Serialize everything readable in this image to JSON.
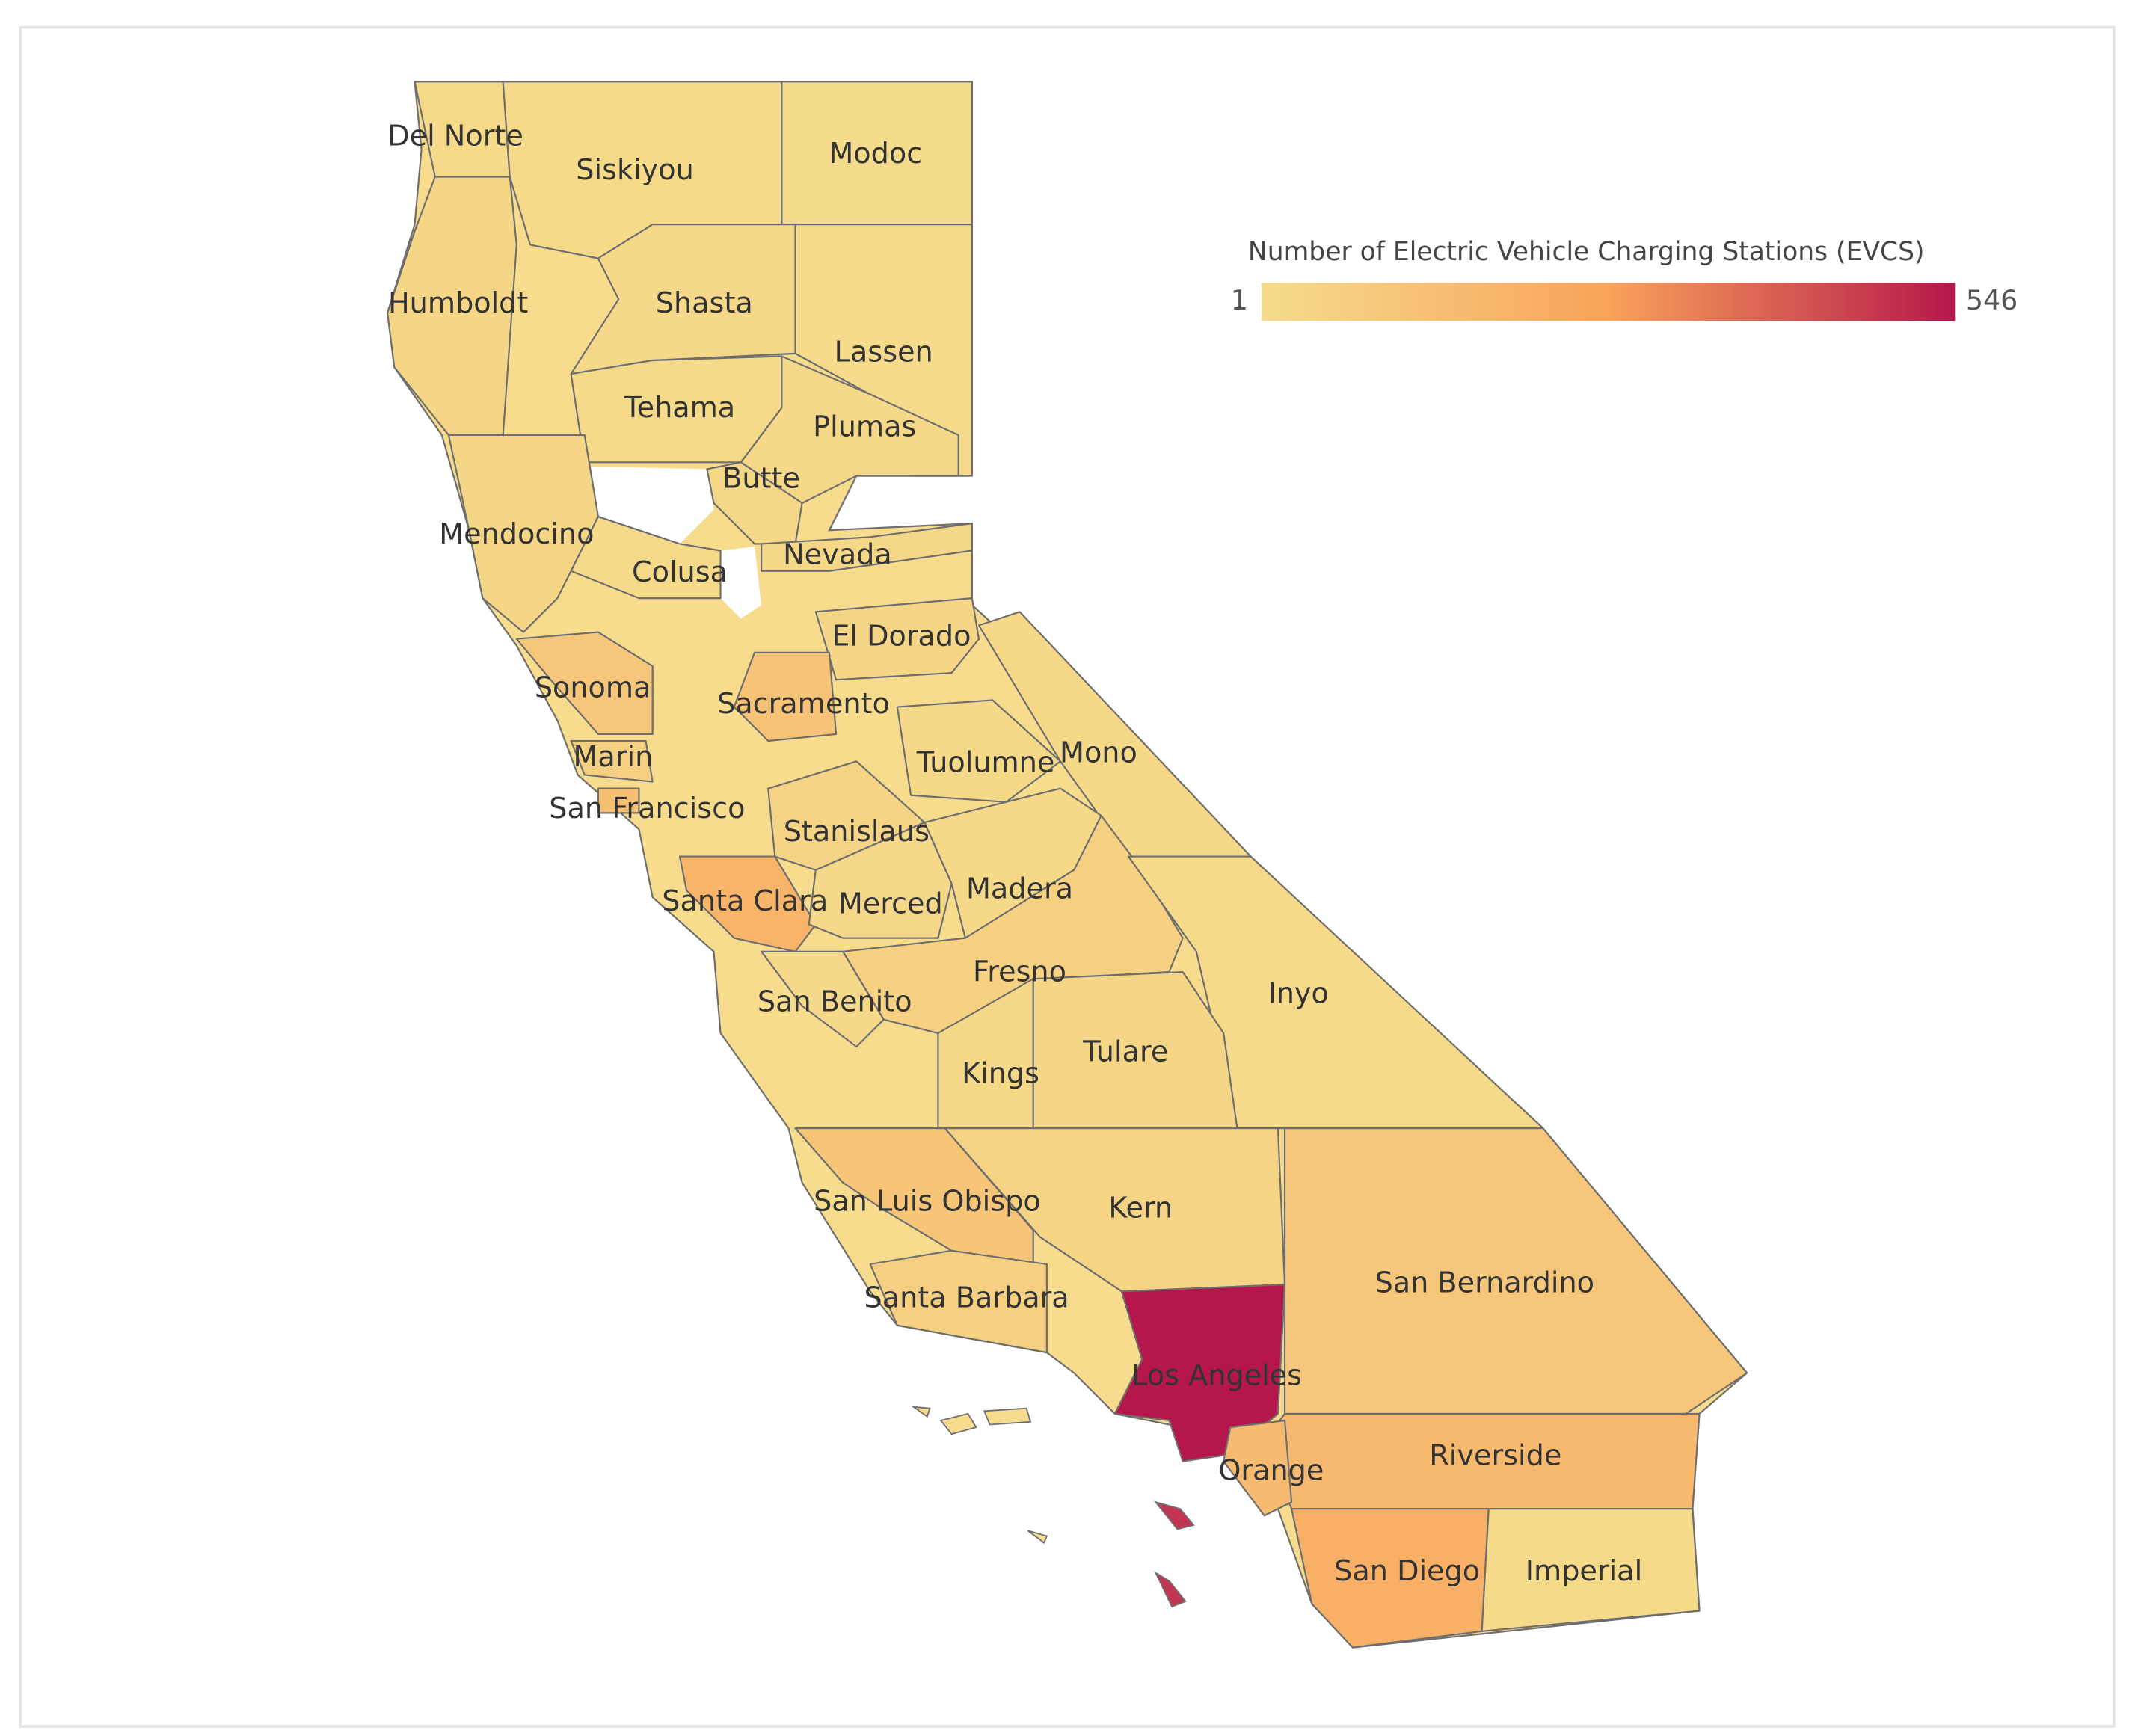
{
  "legend": {
    "title": "Number of Electric Vehicle Charging Stations (EVCS)",
    "min": 1,
    "max": 546,
    "colorscale": [
      "#f5dc8c",
      "#f9a35a",
      "#b5174a"
    ]
  },
  "counties": [
    {
      "name": "Del Norte",
      "value": 10
    },
    {
      "name": "Siskiyou",
      "value": 12
    },
    {
      "name": "Modoc",
      "value": 3
    },
    {
      "name": "Humboldt",
      "value": 30
    },
    {
      "name": "Shasta",
      "value": 20
    },
    {
      "name": "Lassen",
      "value": 5
    },
    {
      "name": "Tehama",
      "value": 10
    },
    {
      "name": "Plumas",
      "value": 15
    },
    {
      "name": "Butte",
      "value": 25
    },
    {
      "name": "Mendocino",
      "value": 35
    },
    {
      "name": "Colusa",
      "value": 10
    },
    {
      "name": "Nevada",
      "value": 25
    },
    {
      "name": "El Dorado",
      "value": 30
    },
    {
      "name": "Sonoma",
      "value": 100
    },
    {
      "name": "Sacramento",
      "value": 120
    },
    {
      "name": "Marin",
      "value": 60
    },
    {
      "name": "San Francisco",
      "value": 140
    },
    {
      "name": "Tuolumne",
      "value": 15
    },
    {
      "name": "Mono",
      "value": 15
    },
    {
      "name": "Stanislaus",
      "value": 40
    },
    {
      "name": "Santa Clara",
      "value": 190
    },
    {
      "name": "Merced",
      "value": 20
    },
    {
      "name": "Madera",
      "value": 15
    },
    {
      "name": "Fresno",
      "value": 55
    },
    {
      "name": "San Benito",
      "value": 20
    },
    {
      "name": "Inyo",
      "value": 10
    },
    {
      "name": "Kings",
      "value": 15
    },
    {
      "name": "Tulare",
      "value": 30
    },
    {
      "name": "San Luis Obispo",
      "value": 110
    },
    {
      "name": "Kern",
      "value": 40
    },
    {
      "name": "San Bernardino",
      "value": 100
    },
    {
      "name": "Santa Barbara",
      "value": 60
    },
    {
      "name": "Los Angeles",
      "value": 546
    },
    {
      "name": "Riverside",
      "value": 170
    },
    {
      "name": "Orange",
      "value": 160
    },
    {
      "name": "San Diego",
      "value": 210
    },
    {
      "name": "Imperial",
      "value": 10
    }
  ]
}
